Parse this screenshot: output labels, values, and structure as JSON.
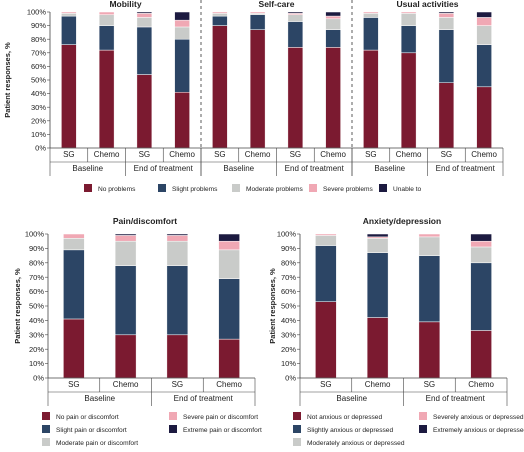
{
  "colors": {
    "no": "#7b1a30",
    "slight": "#2c4565",
    "moderate": "#c9cbc9",
    "severe": "#f0a8b4",
    "extreme": "#1c1a40"
  },
  "common": {
    "ylabel": "Patient responses, %",
    "yticks": [
      "0%",
      "10%",
      "20%",
      "30%",
      "40%",
      "50%",
      "60%",
      "70%",
      "80%",
      "90%",
      "100%"
    ],
    "bar_labels": [
      "SG",
      "Chemo",
      "SG",
      "Chemo"
    ],
    "timepoints": [
      "Baseline",
      "End of treatment"
    ]
  },
  "chart_data": [
    {
      "type": "bar",
      "stacked": true,
      "panels": [
        {
          "title": "Mobility",
          "categories": [
            "SG",
            "Chemo",
            "SG",
            "Chemo"
          ],
          "series": [
            {
              "name": "No problems",
              "values": [
                76,
                72,
                54,
                41
              ]
            },
            {
              "name": "Slight problems",
              "values": [
                21,
                18,
                35,
                39
              ]
            },
            {
              "name": "Moderate problems",
              "values": [
                2,
                8,
                7,
                9
              ]
            },
            {
              "name": "Severe problems",
              "values": [
                1,
                2,
                3,
                5
              ]
            },
            {
              "name": "Unable to",
              "values": [
                0,
                0,
                1,
                6
              ]
            }
          ]
        },
        {
          "title": "Self-care",
          "categories": [
            "SG",
            "Chemo",
            "SG",
            "Chemo"
          ],
          "series": [
            {
              "name": "No problems",
              "values": [
                90,
                87,
                74,
                74
              ]
            },
            {
              "name": "Slight problems",
              "values": [
                7,
                11,
                19,
                13
              ]
            },
            {
              "name": "Moderate problems",
              "values": [
                2,
                1,
                5,
                8
              ]
            },
            {
              "name": "Severe problems",
              "values": [
                1,
                1,
                1,
                2
              ]
            },
            {
              "name": "Unable to",
              "values": [
                0,
                0,
                1,
                3
              ]
            }
          ]
        },
        {
          "title": "Usual activities",
          "categories": [
            "SG",
            "Chemo",
            "SG",
            "Chemo"
          ],
          "series": [
            {
              "name": "No problems",
              "values": [
                72,
                70,
                48,
                45
              ]
            },
            {
              "name": "Slight problems",
              "values": [
                24,
                20,
                39,
                31
              ]
            },
            {
              "name": "Moderate problems",
              "values": [
                3,
                9,
                9,
                14
              ]
            },
            {
              "name": "Severe problems",
              "values": [
                1,
                1,
                3,
                6
              ]
            },
            {
              "name": "Unable to",
              "values": [
                0,
                0,
                1,
                4
              ]
            }
          ]
        }
      ],
      "legend": [
        "No problems",
        "Slight problems",
        "Moderate problems",
        "Severe problems",
        "Unable to"
      ],
      "legend_colors": [
        "no",
        "slight",
        "moderate",
        "severe",
        "extreme"
      ],
      "ylim": [
        0,
        100
      ],
      "ylabel": "Patient responses, %",
      "grid": false
    },
    {
      "type": "bar",
      "stacked": true,
      "title": "Pain/discomfort",
      "categories": [
        "SG",
        "Chemo",
        "SG",
        "Chemo"
      ],
      "series": [
        {
          "name": "No pain or discomfort",
          "values": [
            41,
            30,
            30,
            27
          ]
        },
        {
          "name": "Slight pain or discomfort",
          "values": [
            48,
            48,
            48,
            42
          ]
        },
        {
          "name": "Moderate pain or discomfort",
          "values": [
            8,
            17,
            17,
            20
          ]
        },
        {
          "name": "Severe pain or discomfort",
          "values": [
            3,
            4,
            4,
            6
          ]
        },
        {
          "name": "Extreme pain or discomfort",
          "values": [
            0,
            1,
            1,
            5
          ]
        }
      ],
      "legend": [
        "No pain or discomfort",
        "Severe pain or discomfort",
        "Slight pain or discomfort",
        "Extreme pain or discomfort",
        "Moderate pain or discomfort"
      ],
      "legend_colors": [
        "no",
        "severe",
        "slight",
        "extreme",
        "moderate"
      ],
      "ylim": [
        0,
        100
      ],
      "ylabel": "Patient responses, %",
      "grid": false
    },
    {
      "type": "bar",
      "stacked": true,
      "title": "Anxiety/depression",
      "categories": [
        "SG",
        "Chemo",
        "SG",
        "Chemo"
      ],
      "series": [
        {
          "name": "Not anxious or depressed",
          "values": [
            53,
            42,
            39,
            33
          ]
        },
        {
          "name": "Slightly anxious or depressed",
          "values": [
            39,
            45,
            46,
            47
          ]
        },
        {
          "name": "Moderately anxious or depressed",
          "values": [
            7,
            10,
            13,
            11
          ]
        },
        {
          "name": "Severely anxious or depressed",
          "values": [
            1,
            1,
            2,
            4
          ]
        },
        {
          "name": "Extremely anxious or depressed",
          "values": [
            0,
            2,
            0,
            5
          ]
        }
      ],
      "legend": [
        "Not anxious or depressed",
        "Severely anxious or depressed",
        "Slightly anxious or depressed",
        "Extremely anxious or depressed",
        "Moderately anxious or depressed"
      ],
      "legend_colors": [
        "no",
        "severe",
        "slight",
        "extreme",
        "moderate"
      ],
      "ylim": [
        0,
        100
      ],
      "ylabel": "Patient responses, %",
      "grid": false
    }
  ]
}
